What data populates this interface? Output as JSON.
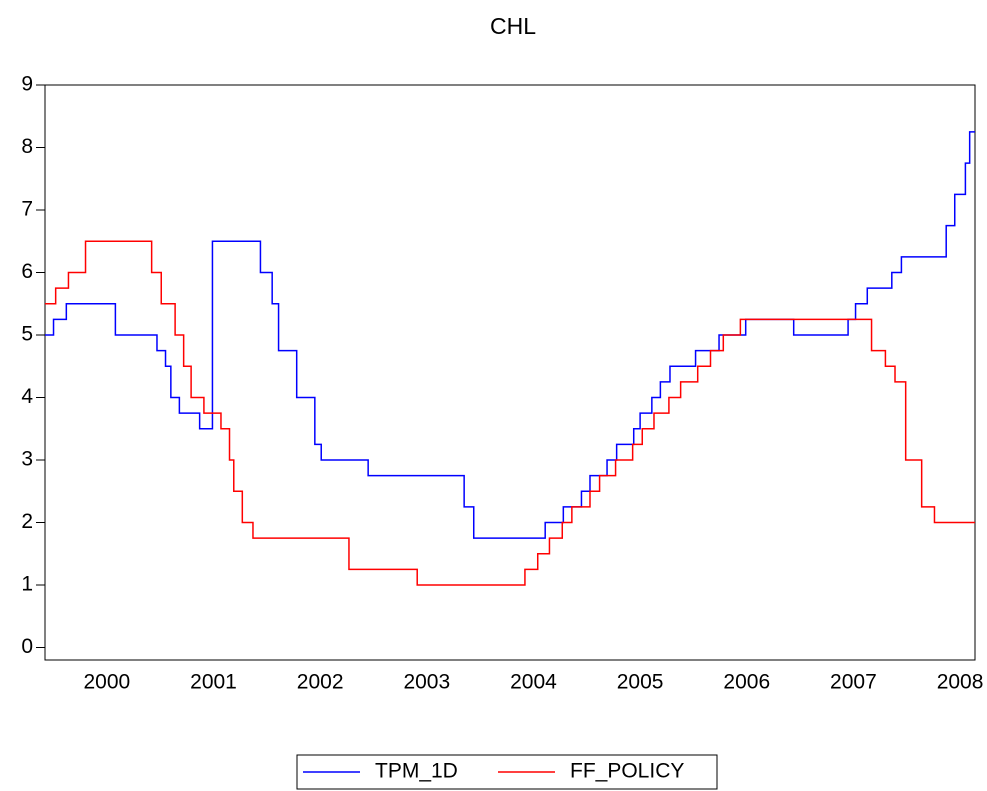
{
  "chart_data": {
    "type": "step",
    "title": "CHL",
    "xlim": [
      1999.92,
      2008.64
    ],
    "xticks": [
      {
        "value": 2000.5,
        "label": "2000"
      },
      {
        "value": 2001.5,
        "label": "2001"
      },
      {
        "value": 2002.5,
        "label": "2002"
      },
      {
        "value": 2003.5,
        "label": "2003"
      },
      {
        "value": 2004.5,
        "label": "2004"
      },
      {
        "value": 2005.5,
        "label": "2005"
      },
      {
        "value": 2006.5,
        "label": "2006"
      },
      {
        "value": 2007.5,
        "label": "2007"
      },
      {
        "value": 2008.5,
        "label": "2008"
      }
    ],
    "ylim": [
      -0.2,
      9
    ],
    "yticks": [
      0,
      1,
      2,
      3,
      4,
      5,
      6,
      7,
      8,
      9
    ],
    "legend": "bottom",
    "series": [
      {
        "name": "TPM_1D",
        "color": "#0000ff",
        "x": [
          1999.92,
          2000.0,
          2000.12,
          2000.58,
          2000.97,
          2001.05,
          2001.1,
          2001.18,
          2001.37,
          2001.49,
          2001.94,
          2002.05,
          2002.11,
          2002.28,
          2002.45,
          2002.51,
          2002.95,
          2003.85,
          2003.94,
          2004.61,
          2004.78,
          2004.95,
          2005.03,
          2005.19,
          2005.28,
          2005.44,
          2005.5,
          2005.61,
          2005.69,
          2005.78,
          2006.02,
          2006.24,
          2006.49,
          2006.94,
          2007.45,
          2007.52,
          2007.63,
          2007.86,
          2007.95,
          2008.37,
          2008.45,
          2008.55,
          2008.59,
          2008.64
        ],
        "values": [
          5.0,
          5.25,
          5.5,
          5.0,
          4.75,
          4.5,
          4.0,
          3.75,
          3.5,
          6.5,
          6.0,
          5.5,
          4.75,
          4.0,
          3.25,
          3.0,
          2.75,
          2.25,
          1.75,
          2.0,
          2.25,
          2.5,
          2.75,
          3.0,
          3.25,
          3.5,
          3.75,
          4.0,
          4.25,
          4.5,
          4.75,
          5.0,
          5.25,
          5.0,
          5.25,
          5.5,
          5.75,
          6.0,
          6.25,
          6.75,
          7.25,
          7.75,
          8.25,
          8.25
        ]
      },
      {
        "name": "FF_POLICY",
        "color": "#ff0000",
        "x": [
          1999.92,
          2000.02,
          2000.14,
          2000.3,
          2000.92,
          2001.01,
          2001.14,
          2001.22,
          2001.29,
          2001.41,
          2001.57,
          2001.65,
          2001.69,
          2001.77,
          2001.87,
          2002.77,
          2003.41,
          2004.42,
          2004.54,
          2004.65,
          2004.77,
          2004.86,
          2005.03,
          2005.12,
          2005.27,
          2005.43,
          2005.52,
          2005.63,
          2005.77,
          2005.88,
          2006.04,
          2006.16,
          2006.28,
          2006.44,
          2007.67,
          2007.8,
          2007.89,
          2007.99,
          2008.14,
          2008.26,
          2008.64
        ],
        "values": [
          5.5,
          5.75,
          6.0,
          6.5,
          6.0,
          5.5,
          5.0,
          4.5,
          4.0,
          3.75,
          3.5,
          3.0,
          2.5,
          2.0,
          1.75,
          1.25,
          1.0,
          1.25,
          1.5,
          1.75,
          2.0,
          2.25,
          2.5,
          2.75,
          3.0,
          3.25,
          3.5,
          3.75,
          4.0,
          4.25,
          4.5,
          4.75,
          5.0,
          5.25,
          4.75,
          4.5,
          4.25,
          3.0,
          2.25,
          2.0,
          2.0
        ]
      }
    ]
  }
}
